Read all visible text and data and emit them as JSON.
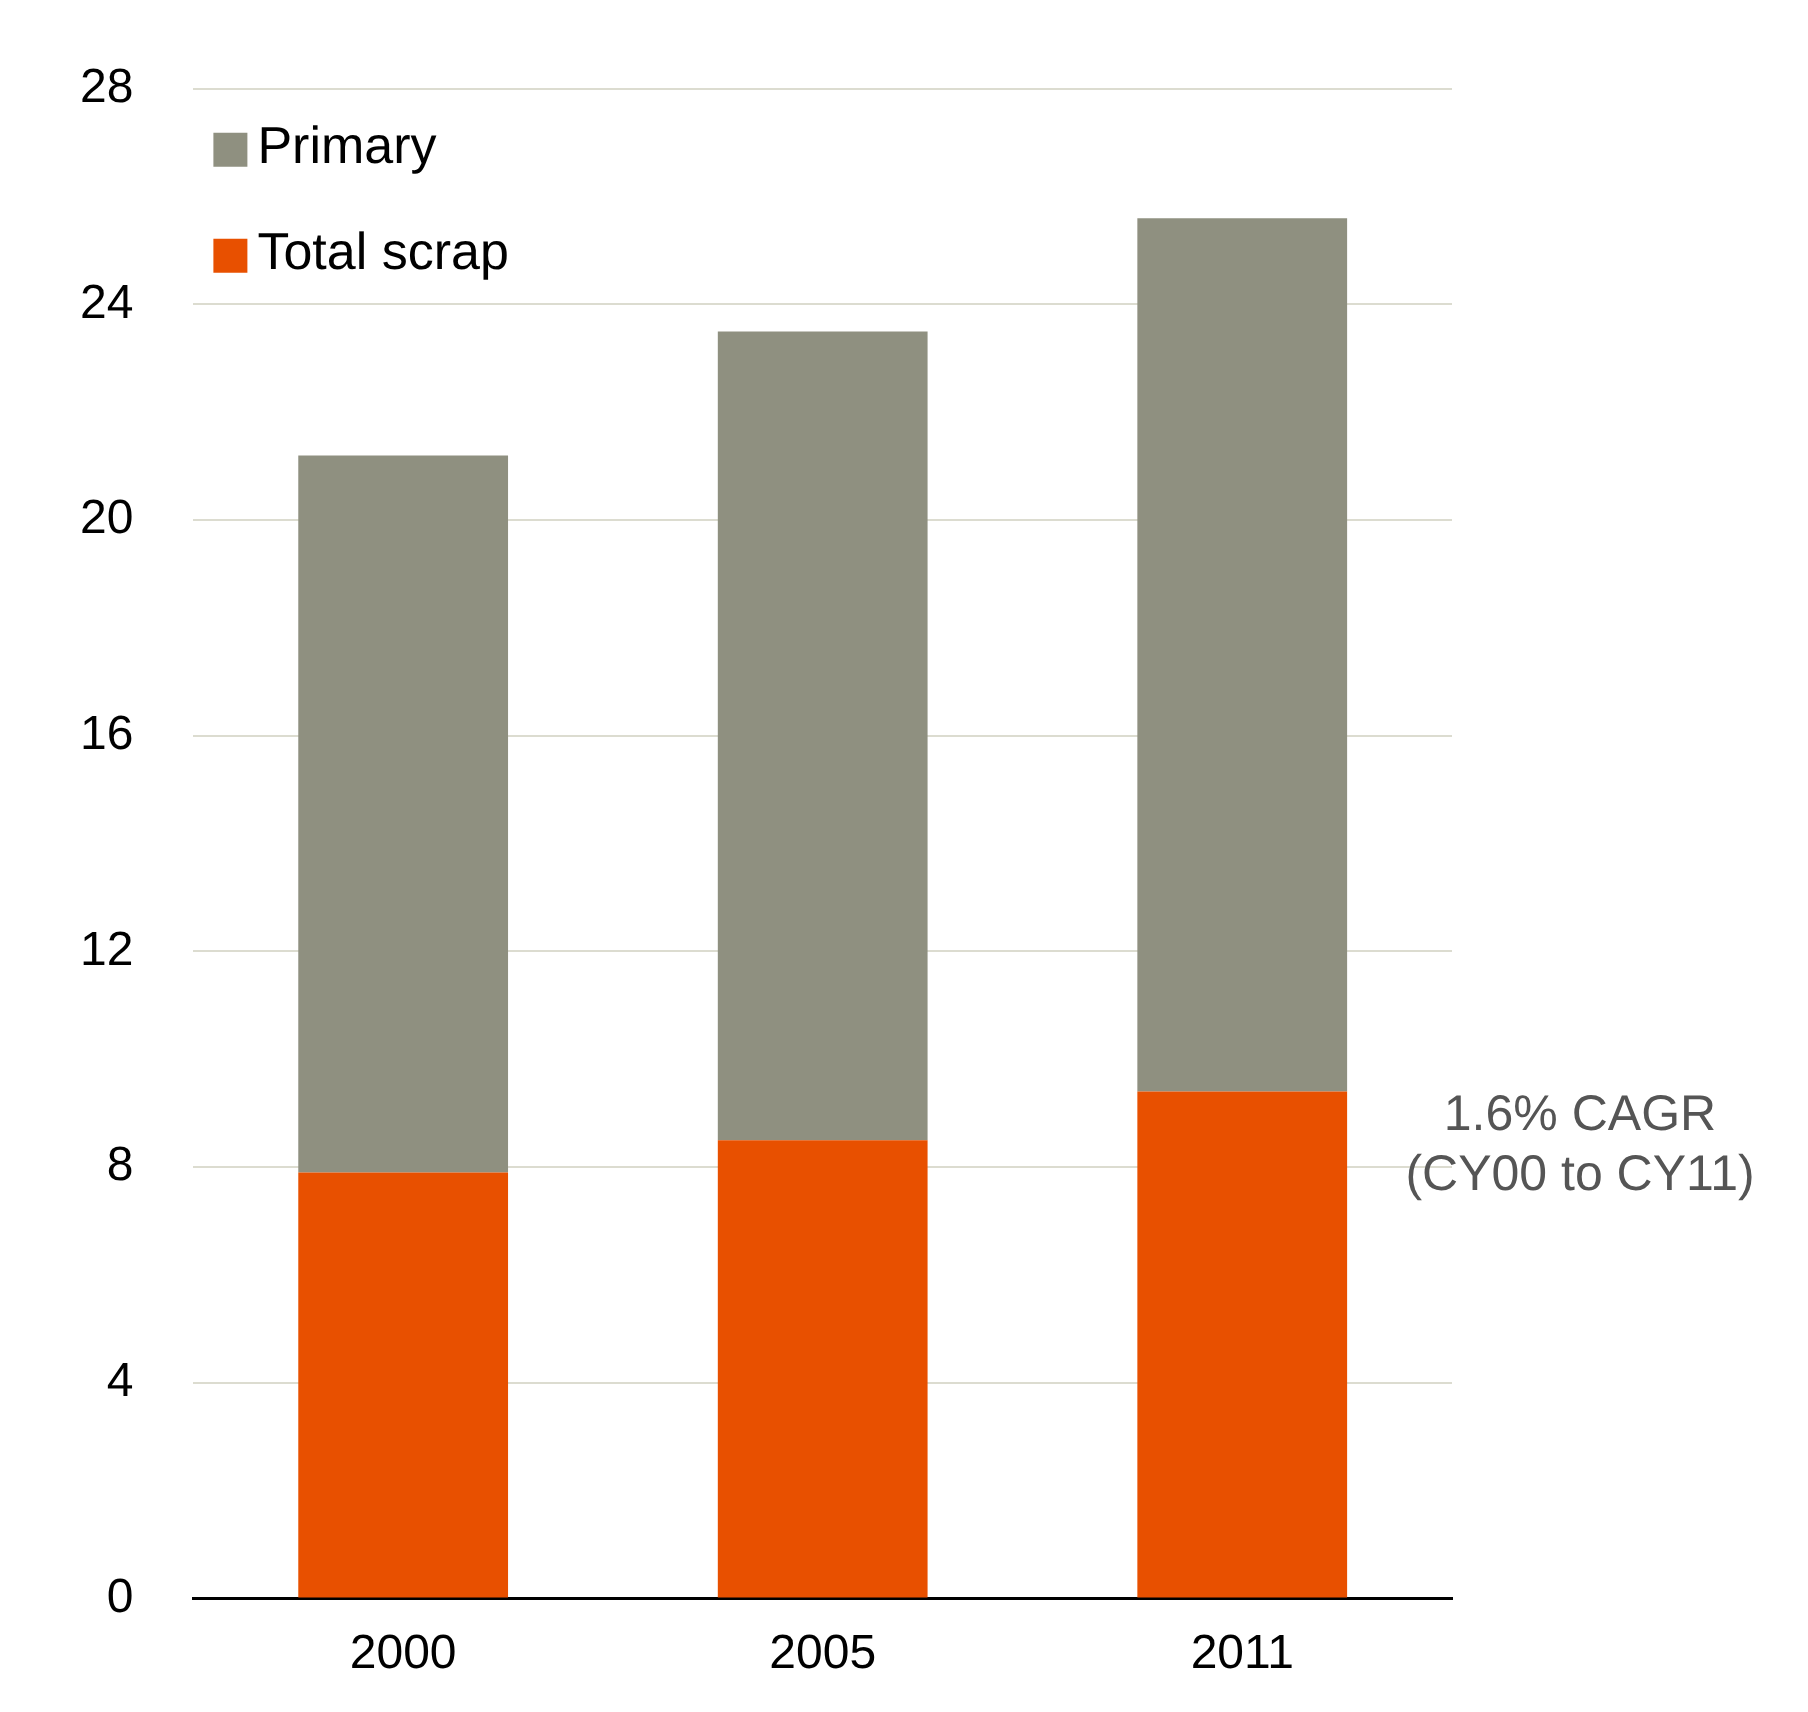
{
  "chart_data": {
    "type": "bar",
    "stacked": true,
    "categories": [
      "2000",
      "2005",
      "2011"
    ],
    "series": [
      {
        "name": "Total scrap",
        "color": "#e85000",
        "values": [
          7.9,
          8.5,
          9.4
        ]
      },
      {
        "name": "Primary",
        "color": "#8f9080",
        "values": [
          13.3,
          15.0,
          16.2
        ]
      }
    ],
    "ylim": [
      0,
      28
    ],
    "yticks": [
      0,
      4,
      8,
      12,
      16,
      20,
      24,
      28
    ],
    "grid": "y",
    "legend": "top left",
    "annotations": [
      "1.6% CAGR (CY00 to CY11)"
    ]
  }
}
